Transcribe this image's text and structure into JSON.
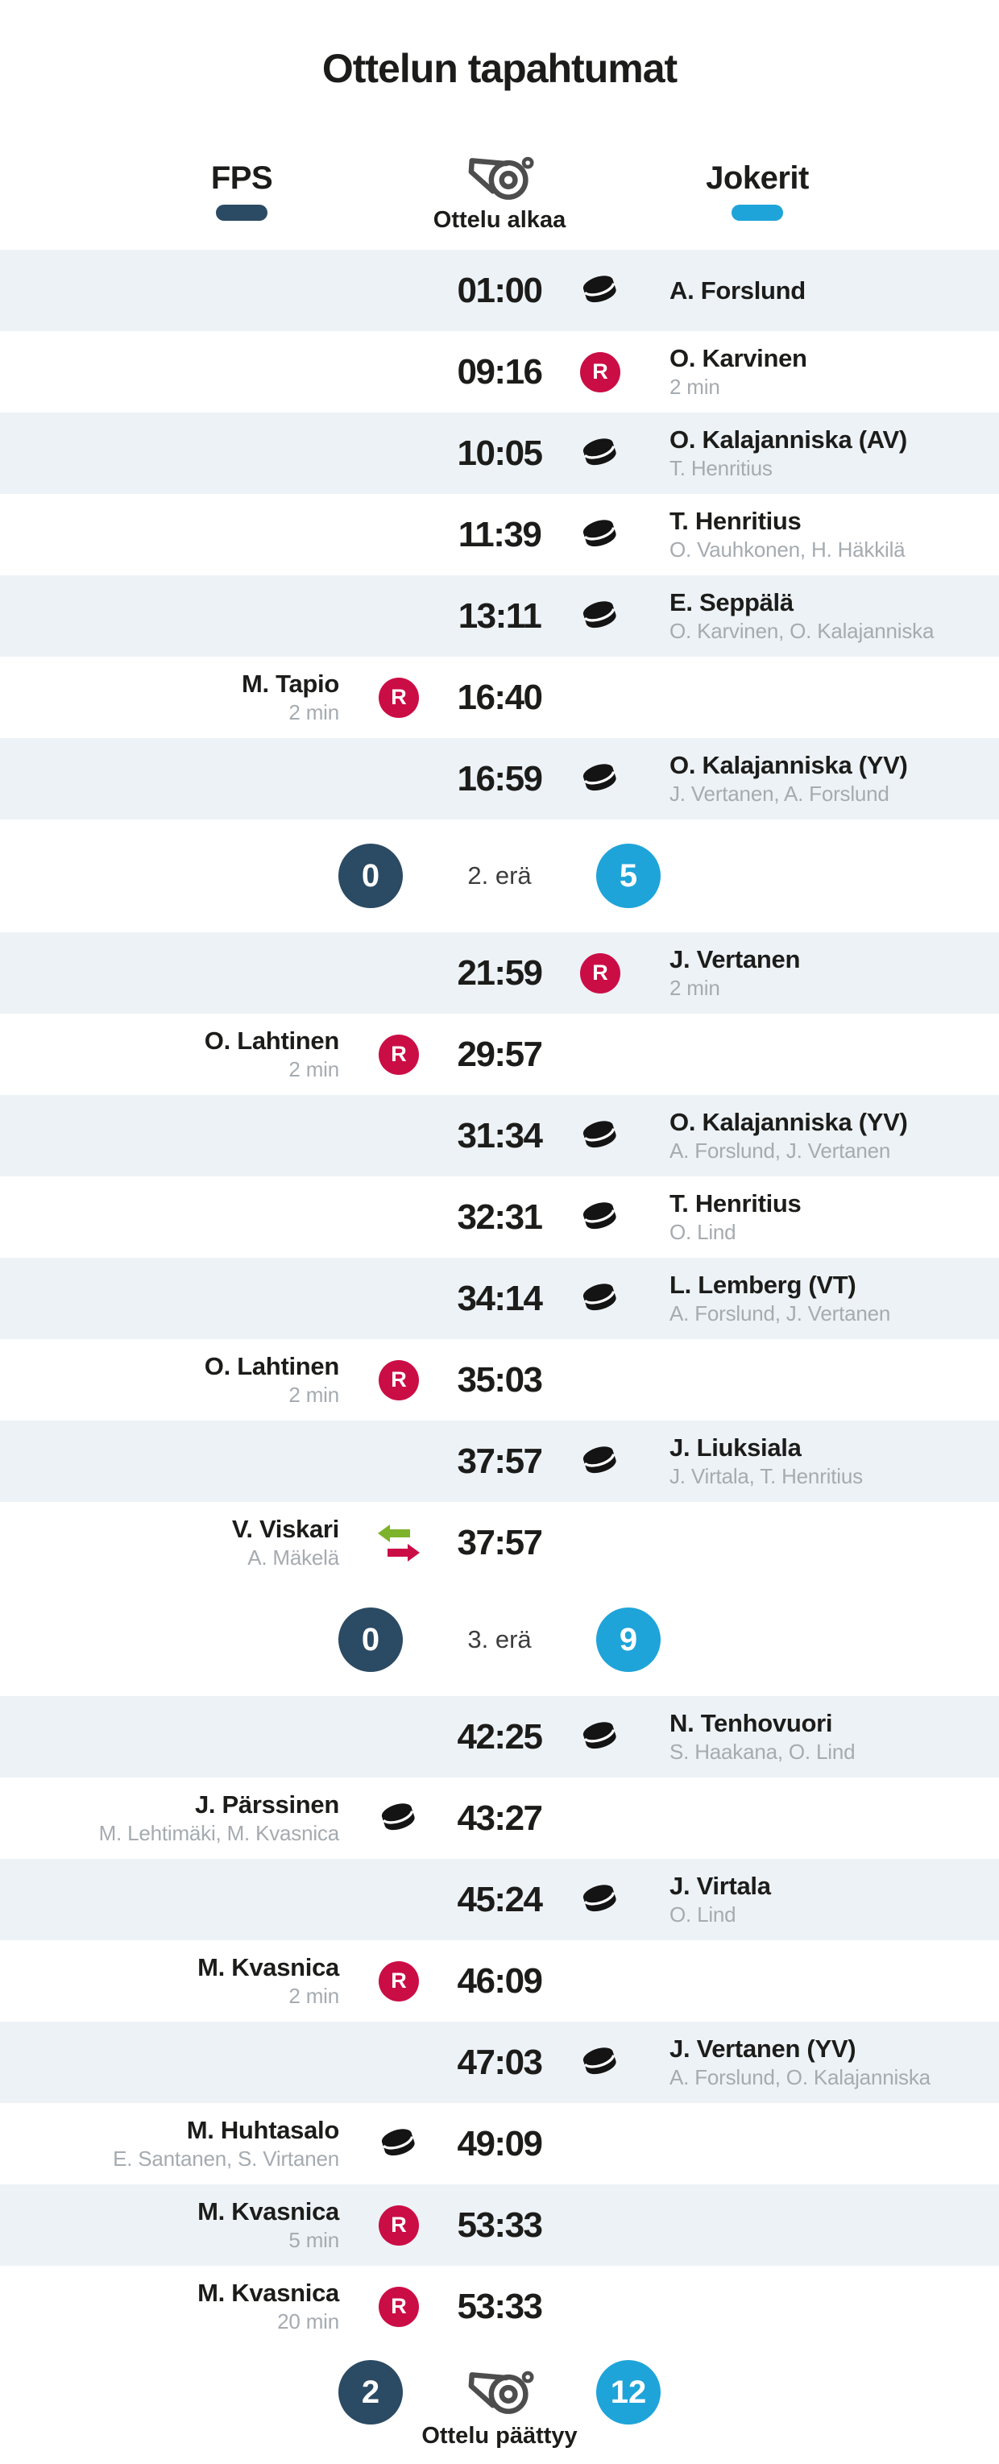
{
  "title": "Ottelun tapahtumat",
  "header": {
    "home_team": "FPS",
    "away_team": "Jokerit",
    "start_label": "Ottelu alkaa"
  },
  "colors": {
    "navy": "#2b4a63",
    "blue": "#1ea4d9",
    "red": "#cb0d46",
    "green": "#7db32a",
    "row_alt": "#edf2f6",
    "text": "#1c1c1a",
    "muted": "#a5abb0",
    "whistle": "#4d4d4d"
  },
  "icons": {
    "goal": "puck-icon",
    "penalty": "penalty-icon",
    "substitution": "substitution-icon",
    "whistle": "whistle-icon"
  },
  "events": [
    {
      "type": "goal",
      "side": "away",
      "time": "01:00",
      "name": "A. Forslund",
      "detail": ""
    },
    {
      "type": "penalty",
      "side": "away",
      "time": "09:16",
      "name": "O. Karvinen",
      "detail": "2 min"
    },
    {
      "type": "goal",
      "side": "away",
      "time": "10:05",
      "name": "O. Kalajanniska (AV)",
      "detail": "T. Henritius"
    },
    {
      "type": "goal",
      "side": "away",
      "time": "11:39",
      "name": "T. Henritius",
      "detail": "O. Vauhkonen, H. Häkkilä"
    },
    {
      "type": "goal",
      "side": "away",
      "time": "13:11",
      "name": "E. Seppälä",
      "detail": "O. Karvinen, O. Kalajanniska"
    },
    {
      "type": "penalty",
      "side": "home",
      "time": "16:40",
      "name": "M. Tapio",
      "detail": "2 min"
    },
    {
      "type": "goal",
      "side": "away",
      "time": "16:59",
      "name": "O. Kalajanniska (YV)",
      "detail": "J. Vertanen, A. Forslund"
    },
    {
      "type": "period",
      "label": "2. erä",
      "home_score": "0",
      "away_score": "5"
    },
    {
      "type": "penalty",
      "side": "away",
      "time": "21:59",
      "name": "J. Vertanen",
      "detail": "2 min"
    },
    {
      "type": "penalty",
      "side": "home",
      "time": "29:57",
      "name": "O. Lahtinen",
      "detail": "2 min"
    },
    {
      "type": "goal",
      "side": "away",
      "time": "31:34",
      "name": "O. Kalajanniska (YV)",
      "detail": "A. Forslund, J. Vertanen"
    },
    {
      "type": "goal",
      "side": "away",
      "time": "32:31",
      "name": "T. Henritius",
      "detail": "O. Lind"
    },
    {
      "type": "goal",
      "side": "away",
      "time": "34:14",
      "name": "L. Lemberg (VT)",
      "detail": "A. Forslund, J. Vertanen"
    },
    {
      "type": "penalty",
      "side": "home",
      "time": "35:03",
      "name": "O. Lahtinen",
      "detail": "2 min"
    },
    {
      "type": "goal",
      "side": "away",
      "time": "37:57",
      "name": "J. Liuksiala",
      "detail": "J. Virtala, T. Henritius"
    },
    {
      "type": "substitution",
      "side": "home",
      "time": "37:57",
      "name": "V. Viskari",
      "detail": "A. Mäkelä"
    },
    {
      "type": "period",
      "label": "3. erä",
      "home_score": "0",
      "away_score": "9"
    },
    {
      "type": "goal",
      "side": "away",
      "time": "42:25",
      "name": "N. Tenhovuori",
      "detail": "S. Haakana, O. Lind"
    },
    {
      "type": "goal",
      "side": "home",
      "time": "43:27",
      "name": "J. Pärssinen",
      "detail": "M. Lehtimäki, M. Kvasnica"
    },
    {
      "type": "goal",
      "side": "away",
      "time": "45:24",
      "name": "J. Virtala",
      "detail": "O. Lind"
    },
    {
      "type": "penalty",
      "side": "home",
      "time": "46:09",
      "name": "M. Kvasnica",
      "detail": "2 min"
    },
    {
      "type": "goal",
      "side": "away",
      "time": "47:03",
      "name": "J. Vertanen (YV)",
      "detail": "A. Forslund, O. Kalajanniska"
    },
    {
      "type": "goal",
      "side": "home",
      "time": "49:09",
      "name": "M. Huhtasalo",
      "detail": "E. Santanen, S. Virtanen"
    },
    {
      "type": "penalty",
      "side": "home",
      "time": "53:33",
      "name": "M. Kvasnica",
      "detail": "5 min"
    },
    {
      "type": "penalty",
      "side": "home",
      "time": "53:33",
      "name": "M. Kvasnica",
      "detail": "20 min"
    }
  ],
  "footer": {
    "label": "Ottelu päättyy",
    "home_score": "2",
    "away_score": "12"
  }
}
